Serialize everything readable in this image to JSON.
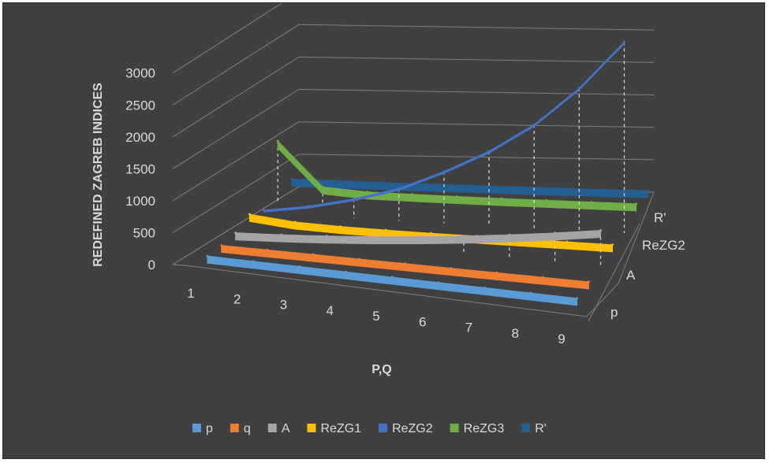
{
  "chart_data": {
    "type": "3d-line",
    "title": "",
    "xlabel": "P,Q",
    "ylabel": "REDEFINED ZAGREB INDICES",
    "zlabel": "",
    "x": [
      1,
      2,
      3,
      4,
      5,
      6,
      7,
      8,
      9
    ],
    "yticks": [
      "0",
      "500",
      "1000",
      "1500",
      "2000",
      "2500",
      "3000"
    ],
    "ylim": [
      0,
      3000
    ],
    "depth_ticks": [
      "p",
      "A",
      "ReZG2",
      "R'"
    ],
    "grid": true,
    "legend_position": "bottom",
    "series": [
      {
        "name": "p",
        "color": "#5b9bd5",
        "values": [
          1,
          2,
          3,
          4,
          5,
          6,
          7,
          8,
          9
        ]
      },
      {
        "name": "q",
        "color": "#ed7d31",
        "values": [
          1,
          2,
          3,
          4,
          5,
          6,
          7,
          8,
          9
        ]
      },
      {
        "name": "A",
        "color": "#a5a5a5",
        "values": [
          30,
          60,
          100,
          150,
          210,
          280,
          360,
          450,
          550
        ]
      },
      {
        "name": "ReZG1",
        "color": "#ffc000",
        "values": [
          150,
          80,
          60,
          55,
          55,
          60,
          65,
          70,
          75
        ]
      },
      {
        "name": "ReZG2",
        "color": "#4472c4",
        "values": [
          50,
          150,
          300,
          500,
          800,
          1150,
          1600,
          2200,
          2950
        ]
      },
      {
        "name": "ReZG3",
        "color": "#70ad47",
        "values": [
          950,
          270,
          220,
          210,
          205,
          200,
          200,
          200,
          200
        ]
      },
      {
        "name": "R'",
        "color": "#255e91",
        "values": [
          200,
          190,
          180,
          170,
          165,
          160,
          155,
          150,
          150
        ]
      }
    ]
  }
}
